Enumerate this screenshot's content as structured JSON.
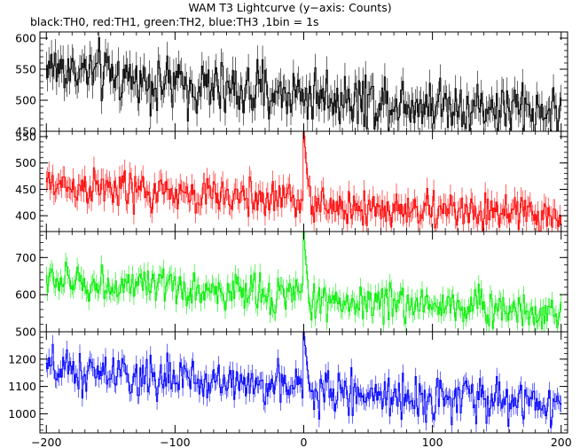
{
  "title": "WAM T3 Lightcurve (y−axis: Counts)",
  "subtitle": "black:TH0, red:TH1, green:TH2, blue:TH3 ,1bin = 1s",
  "chart_data": {
    "type": "line",
    "xlim": [
      -205,
      205
    ],
    "x_ticks": [
      -200,
      -100,
      0,
      100,
      200
    ],
    "x_tick_labels": [
      "−200",
      "−100",
      "0",
      "100",
      "200"
    ],
    "bin_seconds": 1,
    "grid": false,
    "panels": [
      {
        "name": "TH0",
        "color": "#000000",
        "ylim": [
          450,
          610
        ],
        "y_ticks": [
          450,
          500,
          550,
          600
        ],
        "trend": [
          [
            -200,
            555
          ],
          [
            -150,
            540
          ],
          [
            -100,
            525
          ],
          [
            -50,
            515
          ],
          [
            0,
            510
          ],
          [
            50,
            500
          ],
          [
            100,
            495
          ],
          [
            150,
            487
          ],
          [
            200,
            480
          ]
        ],
        "noise_sd": 22,
        "spike": null
      },
      {
        "name": "TH1",
        "color": "#ff0000",
        "ylim": [
          370,
          560
        ],
        "y_ticks": [
          400,
          450,
          500,
          550
        ],
        "trend": [
          [
            -200,
            460
          ],
          [
            -150,
            450
          ],
          [
            -100,
            440
          ],
          [
            -50,
            435
          ],
          [
            -2,
            433
          ],
          [
            5,
            418
          ],
          [
            50,
            414
          ],
          [
            100,
            410
          ],
          [
            150,
            405
          ],
          [
            200,
            398
          ]
        ],
        "noise_sd": 18,
        "spike": {
          "x": [
            0,
            1,
            2,
            3
          ],
          "y": [
            560,
            530,
            500,
            470
          ]
        }
      },
      {
        "name": "TH2",
        "color": "#00ee00",
        "ylim": [
          500,
          770
        ],
        "y_ticks": [
          500,
          600,
          700
        ],
        "trend": [
          [
            -200,
            640
          ],
          [
            -150,
            625
          ],
          [
            -100,
            615
          ],
          [
            -50,
            605
          ],
          [
            -2,
            600
          ],
          [
            5,
            585
          ],
          [
            50,
            580
          ],
          [
            100,
            575
          ],
          [
            150,
            565
          ],
          [
            200,
            550
          ]
        ],
        "noise_sd": 25,
        "spike": {
          "x": [
            0,
            1,
            2,
            3
          ],
          "y": [
            770,
            720,
            680,
            640
          ]
        }
      },
      {
        "name": "TH3",
        "color": "#0000ff",
        "ylim": [
          930,
          1300
        ],
        "y_ticks": [
          1000,
          1100,
          1200
        ],
        "trend": [
          [
            -200,
            1160
          ],
          [
            -150,
            1140
          ],
          [
            -100,
            1125
          ],
          [
            -50,
            1115
          ],
          [
            -2,
            1100
          ],
          [
            5,
            1080
          ],
          [
            50,
            1070
          ],
          [
            100,
            1060
          ],
          [
            150,
            1050
          ],
          [
            200,
            1040
          ]
        ],
        "noise_sd": 38,
        "spike": {
          "x": [
            0,
            1,
            2,
            3
          ],
          "y": [
            1300,
            1250,
            1210,
            1160
          ]
        }
      }
    ]
  }
}
